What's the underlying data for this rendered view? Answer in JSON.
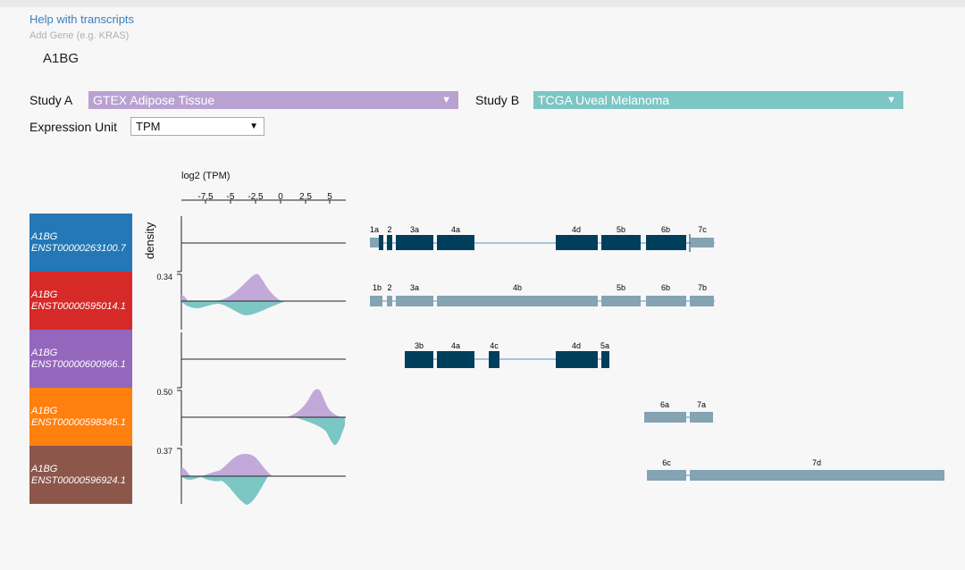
{
  "header": {
    "help_link": "Help with transcripts",
    "add_gene_placeholder": "Add Gene (e.g. KRAS)",
    "gene": "A1BG"
  },
  "controls": {
    "study_a_label": "Study A",
    "study_a_value": "GTEX Adipose Tissue",
    "study_a_color": "#b9a1d2",
    "study_b_label": "Study B",
    "study_b_value": "TCGA Uveal Melanoma",
    "study_b_color": "#7cc6c4",
    "unit_label": "Expression Unit",
    "unit_value": "TPM",
    "dropdown_icon": "triangle-down-icon"
  },
  "axis": {
    "title": "log2 (TPM)",
    "ticks": [
      "-7.5",
      "-5",
      "-2.5",
      "0",
      "2.5",
      "5"
    ],
    "density_label": "density"
  },
  "transcripts": [
    {
      "gene": "A1BG",
      "id": "ENST00000263100.7",
      "color": "#2378b5",
      "max_density": "",
      "has_density": false
    },
    {
      "gene": "A1BG",
      "id": "ENST00000595014.1",
      "color": "#d62a28",
      "max_density": "0.34",
      "has_density": true
    },
    {
      "gene": "A1BG",
      "id": "ENST00000600966.1",
      "color": "#9467bd",
      "max_density": "",
      "has_density": false
    },
    {
      "gene": "A1BG",
      "id": "ENST00000598345.1",
      "color": "#ff7f0f",
      "max_density": "0.50",
      "has_density": true
    },
    {
      "gene": "A1BG",
      "id": "ENST00000596924.1",
      "color": "#8c564b",
      "max_density": "0.37",
      "has_density": true
    }
  ],
  "exon_colors": {
    "coding": "#003f5c",
    "noncoding": "#84a3b3"
  },
  "exon_structures": [
    {
      "labels": [
        "1a",
        "2",
        "3a",
        "4a",
        "4d",
        "5b",
        "6b",
        "7c"
      ]
    },
    {
      "labels": [
        "1b",
        "2",
        "3a",
        "4b",
        "5b",
        "6b",
        "7b"
      ]
    },
    {
      "labels": [
        "3b",
        "4a",
        "4c",
        "4d",
        "5a"
      ]
    },
    {
      "labels": [
        "6a",
        "7a"
      ]
    },
    {
      "labels": [
        "6c",
        "7d"
      ]
    }
  ]
}
